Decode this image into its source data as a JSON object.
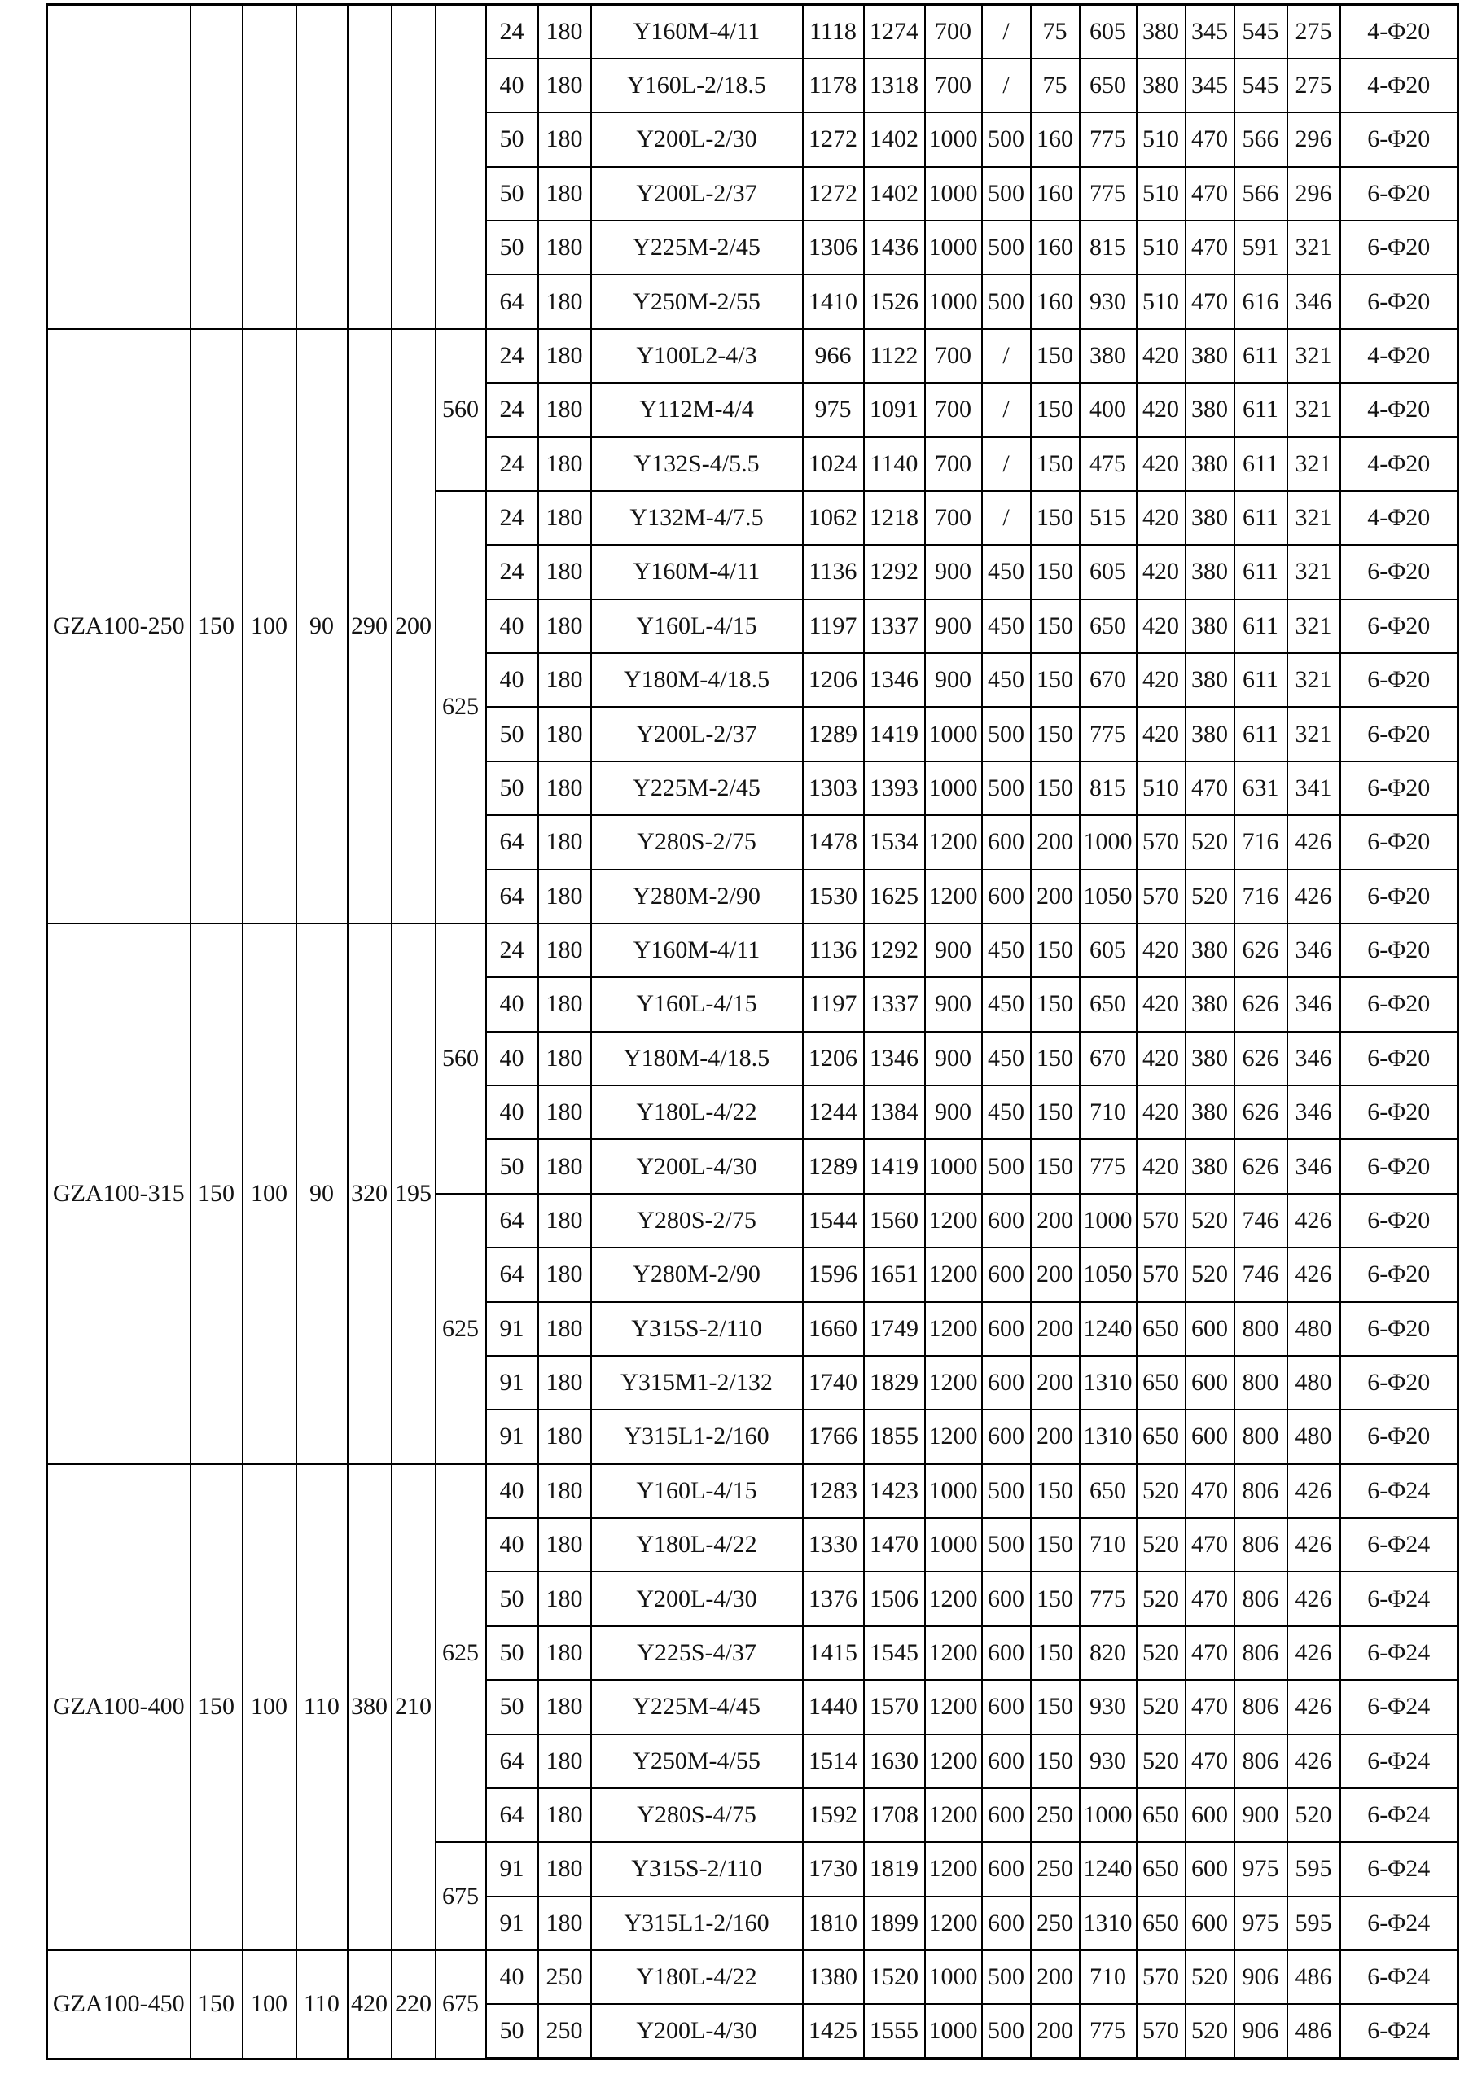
{
  "table": {
    "highlight_color": "#F5E5AE",
    "sections": [
      {
        "model": "",
        "dims": [
          "",
          "",
          "",
          "",
          ""
        ],
        "speed_groups": [
          {
            "speed": "",
            "rows": 6
          }
        ],
        "rows": [
          {
            "flow": "24",
            "pressure": "180",
            "motor": "Y160M-4/11",
            "values": [
              "1118",
              "1274",
              "700",
              "/",
              "75",
              "605",
              "380",
              "345",
              "545",
              "275"
            ],
            "bolt": "4-Φ20",
            "highlight": false
          },
          {
            "flow": "40",
            "pressure": "180",
            "motor": "Y160L-2/18.5",
            "values": [
              "1178",
              "1318",
              "700",
              "/",
              "75",
              "650",
              "380",
              "345",
              "545",
              "275"
            ],
            "bolt": "4-Φ20",
            "highlight": false
          },
          {
            "flow": "50",
            "pressure": "180",
            "motor": "Y200L-2/30",
            "values": [
              "1272",
              "1402",
              "1000",
              "500",
              "160",
              "775",
              "510",
              "470",
              "566",
              "296"
            ],
            "bolt": "6-Φ20",
            "highlight": false
          },
          {
            "flow": "50",
            "pressure": "180",
            "motor": "Y200L-2/37",
            "values": [
              "1272",
              "1402",
              "1000",
              "500",
              "160",
              "775",
              "510",
              "470",
              "566",
              "296"
            ],
            "bolt": "6-Φ20",
            "highlight": false
          },
          {
            "flow": "50",
            "pressure": "180",
            "motor": "Y225M-2/45",
            "values": [
              "1306",
              "1436",
              "1000",
              "500",
              "160",
              "815",
              "510",
              "470",
              "591",
              "321"
            ],
            "bolt": "6-Φ20",
            "highlight": true
          },
          {
            "flow": "64",
            "pressure": "180",
            "motor": "Y250M-2/55",
            "values": [
              "1410",
              "1526",
              "1000",
              "500",
              "160",
              "930",
              "510",
              "470",
              "616",
              "346"
            ],
            "bolt": "6-Φ20",
            "highlight": true
          }
        ]
      },
      {
        "model": "GZA100-250",
        "dims": [
          "150",
          "100",
          "90",
          "290",
          "200"
        ],
        "speed_groups": [
          {
            "speed": "560",
            "rows": 3
          },
          {
            "speed": "625",
            "rows": 8
          }
        ],
        "rows": [
          {
            "flow": "24",
            "pressure": "180",
            "motor": "Y100L2-4/3",
            "values": [
              "966",
              "1122",
              "700",
              "/",
              "150",
              "380",
              "420",
              "380",
              "611",
              "321"
            ],
            "bolt": "4-Φ20",
            "highlight": true
          },
          {
            "flow": "24",
            "pressure": "180",
            "motor": "Y112M-4/4",
            "values": [
              "975",
              "1091",
              "700",
              "/",
              "150",
              "400",
              "420",
              "380",
              "611",
              "321"
            ],
            "bolt": "4-Φ20",
            "highlight": true
          },
          {
            "flow": "24",
            "pressure": "180",
            "motor": "Y132S-4/5.5",
            "values": [
              "1024",
              "1140",
              "700",
              "/",
              "150",
              "475",
              "420",
              "380",
              "611",
              "321"
            ],
            "bolt": "4-Φ20",
            "highlight": false
          },
          {
            "flow": "24",
            "pressure": "180",
            "motor": "Y132M-4/7.5",
            "values": [
              "1062",
              "1218",
              "700",
              "/",
              "150",
              "515",
              "420",
              "380",
              "611",
              "321"
            ],
            "bolt": "4-Φ20",
            "highlight": false
          },
          {
            "flow": "24",
            "pressure": "180",
            "motor": "Y160M-4/11",
            "values": [
              "1136",
              "1292",
              "900",
              "450",
              "150",
              "605",
              "420",
              "380",
              "611",
              "321"
            ],
            "bolt": "6-Φ20",
            "highlight": false
          },
          {
            "flow": "40",
            "pressure": "180",
            "motor": "Y160L-4/15",
            "values": [
              "1197",
              "1337",
              "900",
              "450",
              "150",
              "650",
              "420",
              "380",
              "611",
              "321"
            ],
            "bolt": "6-Φ20",
            "highlight": false
          },
          {
            "flow": "40",
            "pressure": "180",
            "motor": "Y180M-4/18.5",
            "values": [
              "1206",
              "1346",
              "900",
              "450",
              "150",
              "670",
              "420",
              "380",
              "611",
              "321"
            ],
            "bolt": "6-Φ20",
            "highlight": true
          },
          {
            "flow": "50",
            "pressure": "180",
            "motor": "Y200L-2/37",
            "values": [
              "1289",
              "1419",
              "1000",
              "500",
              "150",
              "775",
              "420",
              "380",
              "611",
              "321"
            ],
            "bolt": "6-Φ20",
            "highlight": true
          },
          {
            "flow": "50",
            "pressure": "180",
            "motor": "Y225M-2/45",
            "values": [
              "1303",
              "1393",
              "1000",
              "500",
              "150",
              "815",
              "510",
              "470",
              "631",
              "341"
            ],
            "bolt": "6-Φ20",
            "highlight": true
          },
          {
            "flow": "64",
            "pressure": "180",
            "motor": "Y280S-2/75",
            "values": [
              "1478",
              "1534",
              "1200",
              "600",
              "200",
              "1000",
              "570",
              "520",
              "716",
              "426"
            ],
            "bolt": "6-Φ20",
            "highlight": true
          },
          {
            "flow": "64",
            "pressure": "180",
            "motor": "Y280M-2/90",
            "values": [
              "1530",
              "1625",
              "1200",
              "600",
              "200",
              "1050",
              "570",
              "520",
              "716",
              "426"
            ],
            "bolt": "6-Φ20",
            "highlight": false
          }
        ]
      },
      {
        "model": "GZA100-315",
        "dims": [
          "150",
          "100",
          "90",
          "320",
          "195"
        ],
        "speed_groups": [
          {
            "speed": "560",
            "rows": 5
          },
          {
            "speed": "625",
            "rows": 5
          }
        ],
        "rows": [
          {
            "flow": "24",
            "pressure": "180",
            "motor": "Y160M-4/11",
            "values": [
              "1136",
              "1292",
              "900",
              "450",
              "150",
              "605",
              "420",
              "380",
              "626",
              "346"
            ],
            "bolt": "6-Φ20",
            "highlight": false
          },
          {
            "flow": "40",
            "pressure": "180",
            "motor": "Y160L-4/15",
            "values": [
              "1197",
              "1337",
              "900",
              "450",
              "150",
              "650",
              "420",
              "380",
              "626",
              "346"
            ],
            "bolt": "6-Φ20",
            "highlight": false
          },
          {
            "flow": "40",
            "pressure": "180",
            "motor": "Y180M-4/18.5",
            "values": [
              "1206",
              "1346",
              "900",
              "450",
              "150",
              "670",
              "420",
              "380",
              "626",
              "346"
            ],
            "bolt": "6-Φ20",
            "highlight": false
          },
          {
            "flow": "40",
            "pressure": "180",
            "motor": "Y180L-4/22",
            "values": [
              "1244",
              "1384",
              "900",
              "450",
              "150",
              "710",
              "420",
              "380",
              "626",
              "346"
            ],
            "bolt": "6-Φ20",
            "highlight": true
          },
          {
            "flow": "50",
            "pressure": "180",
            "motor": "Y200L-4/30",
            "values": [
              "1289",
              "1419",
              "1000",
              "500",
              "150",
              "775",
              "420",
              "380",
              "626",
              "346"
            ],
            "bolt": "6-Φ20",
            "highlight": true
          },
          {
            "flow": "64",
            "pressure": "180",
            "motor": "Y280S-2/75",
            "values": [
              "1544",
              "1560",
              "1200",
              "600",
              "200",
              "1000",
              "570",
              "520",
              "746",
              "426"
            ],
            "bolt": "6-Φ20",
            "highlight": true
          },
          {
            "flow": "64",
            "pressure": "180",
            "motor": "Y280M-2/90",
            "values": [
              "1596",
              "1651",
              "1200",
              "600",
              "200",
              "1050",
              "570",
              "520",
              "746",
              "426"
            ],
            "bolt": "6-Φ20",
            "highlight": true
          },
          {
            "flow": "91",
            "pressure": "180",
            "motor": "Y315S-2/110",
            "values": [
              "1660",
              "1749",
              "1200",
              "600",
              "200",
              "1240",
              "650",
              "600",
              "800",
              "480"
            ],
            "bolt": "6-Φ20",
            "highlight": false
          },
          {
            "flow": "91",
            "pressure": "180",
            "motor": "Y315M1-2/132",
            "values": [
              "1740",
              "1829",
              "1200",
              "600",
              "200",
              "1310",
              "650",
              "600",
              "800",
              "480"
            ],
            "bolt": "6-Φ20",
            "highlight": false
          },
          {
            "flow": "91",
            "pressure": "180",
            "motor": "Y315L1-2/160",
            "values": [
              "1766",
              "1855",
              "1200",
              "600",
              "200",
              "1310",
              "650",
              "600",
              "800",
              "480"
            ],
            "bolt": "6-Φ20",
            "highlight": false
          }
        ]
      },
      {
        "model": "GZA100-400",
        "dims": [
          "150",
          "100",
          "110",
          "380",
          "210"
        ],
        "speed_groups": [
          {
            "speed": "625",
            "rows": 7
          },
          {
            "speed": "675",
            "rows": 2
          }
        ],
        "rows": [
          {
            "flow": "40",
            "pressure": "180",
            "motor": "Y160L-4/15",
            "values": [
              "1283",
              "1423",
              "1000",
              "500",
              "150",
              "650",
              "520",
              "470",
              "806",
              "426"
            ],
            "bolt": "6-Φ24",
            "highlight": false
          },
          {
            "flow": "40",
            "pressure": "180",
            "motor": "Y180L-4/22",
            "values": [
              "1330",
              "1470",
              "1000",
              "500",
              "150",
              "710",
              "520",
              "470",
              "806",
              "426"
            ],
            "bolt": "6-Φ24",
            "highlight": true
          },
          {
            "flow": "50",
            "pressure": "180",
            "motor": "Y200L-4/30",
            "values": [
              "1376",
              "1506",
              "1200",
              "600",
              "150",
              "775",
              "520",
              "470",
              "806",
              "426"
            ],
            "bolt": "6-Φ24",
            "highlight": true
          },
          {
            "flow": "50",
            "pressure": "180",
            "motor": "Y225S-4/37",
            "values": [
              "1415",
              "1545",
              "1200",
              "600",
              "150",
              "820",
              "520",
              "470",
              "806",
              "426"
            ],
            "bolt": "6-Φ24",
            "highlight": true
          },
          {
            "flow": "50",
            "pressure": "180",
            "motor": "Y225M-4/45",
            "values": [
              "1440",
              "1570",
              "1200",
              "600",
              "150",
              "930",
              "520",
              "470",
              "806",
              "426"
            ],
            "bolt": "6-Φ24",
            "highlight": true
          },
          {
            "flow": "64",
            "pressure": "180",
            "motor": "Y250M-4/55",
            "values": [
              "1514",
              "1630",
              "1200",
              "600",
              "150",
              "930",
              "520",
              "470",
              "806",
              "426"
            ],
            "bolt": "6-Φ24",
            "highlight": false
          },
          {
            "flow": "64",
            "pressure": "180",
            "motor": "Y280S-4/75",
            "values": [
              "1592",
              "1708",
              "1200",
              "600",
              "250",
              "1000",
              "650",
              "600",
              "900",
              "520"
            ],
            "bolt": "6-Φ24",
            "highlight": false
          },
          {
            "flow": "91",
            "pressure": "180",
            "motor": "Y315S-2/110",
            "values": [
              "1730",
              "1819",
              "1200",
              "600",
              "250",
              "1240",
              "650",
              "600",
              "975",
              "595"
            ],
            "bolt": "6-Φ24",
            "highlight": false
          },
          {
            "flow": "91",
            "pressure": "180",
            "motor": "Y315L1-2/160",
            "values": [
              "1810",
              "1899",
              "1200",
              "600",
              "250",
              "1310",
              "650",
              "600",
              "975",
              "595"
            ],
            "bolt": "6-Φ24",
            "highlight": false
          }
        ]
      },
      {
        "model": "GZA100-450",
        "dims": [
          "150",
          "100",
          "110",
          "420",
          "220"
        ],
        "speed_groups": [
          {
            "speed": "675",
            "rows": 2
          }
        ],
        "rows": [
          {
            "flow": "40",
            "pressure": "250",
            "motor": "Y180L-4/22",
            "values": [
              "1380",
              "1520",
              "1000",
              "500",
              "200",
              "710",
              "570",
              "520",
              "906",
              "486"
            ],
            "bolt": "6-Φ24",
            "highlight": true
          },
          {
            "flow": "50",
            "pressure": "250",
            "motor": "Y200L-4/30",
            "values": [
              "1425",
              "1555",
              "1000",
              "500",
              "200",
              "775",
              "570",
              "520",
              "906",
              "486"
            ],
            "bolt": "6-Φ24",
            "highlight": true
          }
        ]
      }
    ]
  }
}
